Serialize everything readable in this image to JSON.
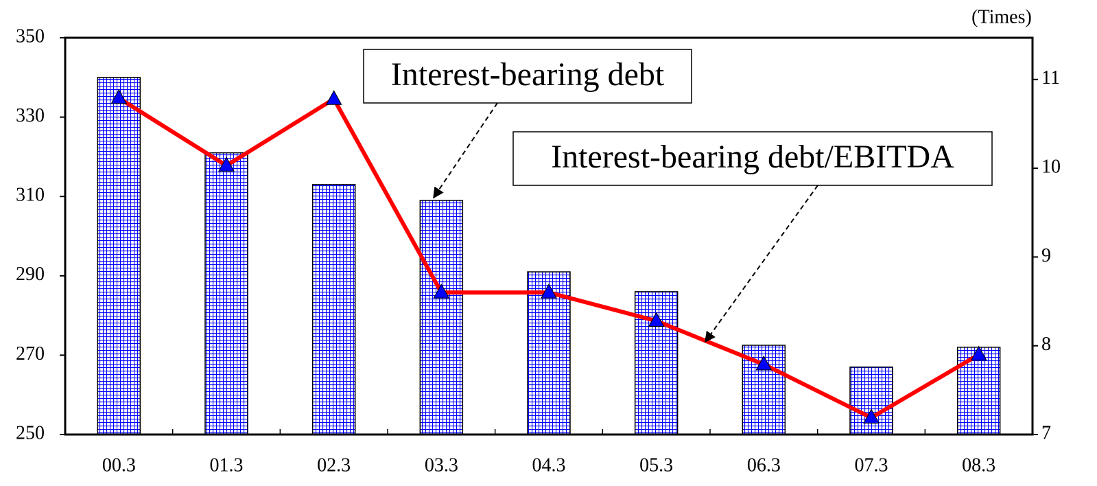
{
  "chart_data": {
    "type": "bar-line",
    "categories": [
      "00.3",
      "01.3",
      "02.3",
      "03.3",
      "04.3",
      "05.3",
      "06.3",
      "07.3",
      "08.3"
    ],
    "series": [
      {
        "name": "Interest-bearing debt",
        "type": "bar",
        "color": "#0000ff",
        "values": [
          340,
          321,
          313,
          309,
          291,
          286,
          272.5,
          267,
          272
        ]
      },
      {
        "name": "Interest-bearing debt/EBITDA",
        "type": "line",
        "axis": "y2",
        "color": "#ff0000",
        "marker_color": "#0000ff",
        "values": [
          10.79,
          10.03,
          10.78,
          8.6,
          8.6,
          8.28,
          7.79,
          7.19,
          7.9
        ]
      }
    ],
    "ylim": [
      250,
      350
    ],
    "yticks": [
      250,
      270,
      290,
      310,
      330,
      350
    ],
    "y2lim": [
      7,
      11.47
    ],
    "y2ticks": [
      7,
      8,
      9,
      10,
      11
    ],
    "y2_label": "(Times)",
    "grid": false
  }
}
